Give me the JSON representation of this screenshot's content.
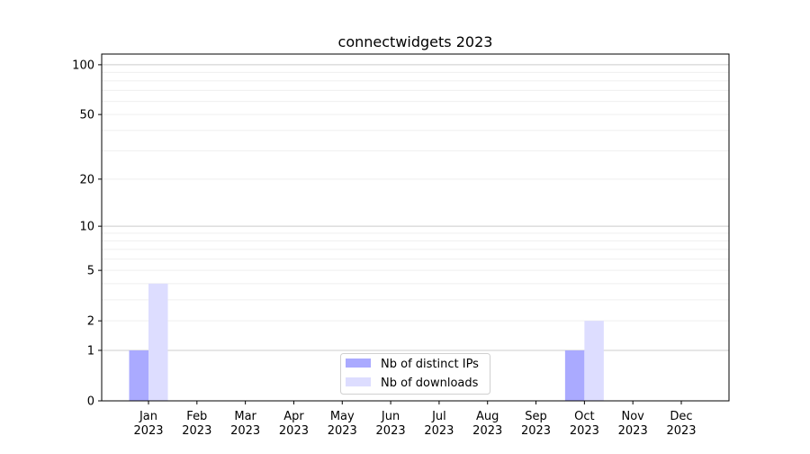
{
  "chart_data": {
    "type": "bar",
    "title": "connectwidgets 2023",
    "xlabel": "",
    "ylabel": "",
    "yscale": "log(1+y)",
    "ylim": [
      0,
      116
    ],
    "yticks": [
      0,
      1,
      2,
      5,
      10,
      20,
      50,
      100
    ],
    "grid": true,
    "legend_position": "lower-center",
    "categories": [
      "Jan\n2023",
      "Feb\n2023",
      "Mar\n2023",
      "Apr\n2023",
      "May\n2023",
      "Jun\n2023",
      "Jul\n2023",
      "Aug\n2023",
      "Sep\n2023",
      "Oct\n2023",
      "Nov\n2023",
      "Dec\n2023"
    ],
    "series": [
      {
        "name": "Nb of distinct IPs",
        "color": "#aaaaff",
        "values": [
          1,
          0,
          0,
          0,
          0,
          0,
          0,
          0,
          0,
          1,
          0,
          0
        ]
      },
      {
        "name": "Nb of downloads",
        "color": "#ddddff",
        "values": [
          4,
          0,
          0,
          0,
          0,
          0,
          0,
          0,
          0,
          2,
          0,
          0
        ]
      }
    ]
  }
}
